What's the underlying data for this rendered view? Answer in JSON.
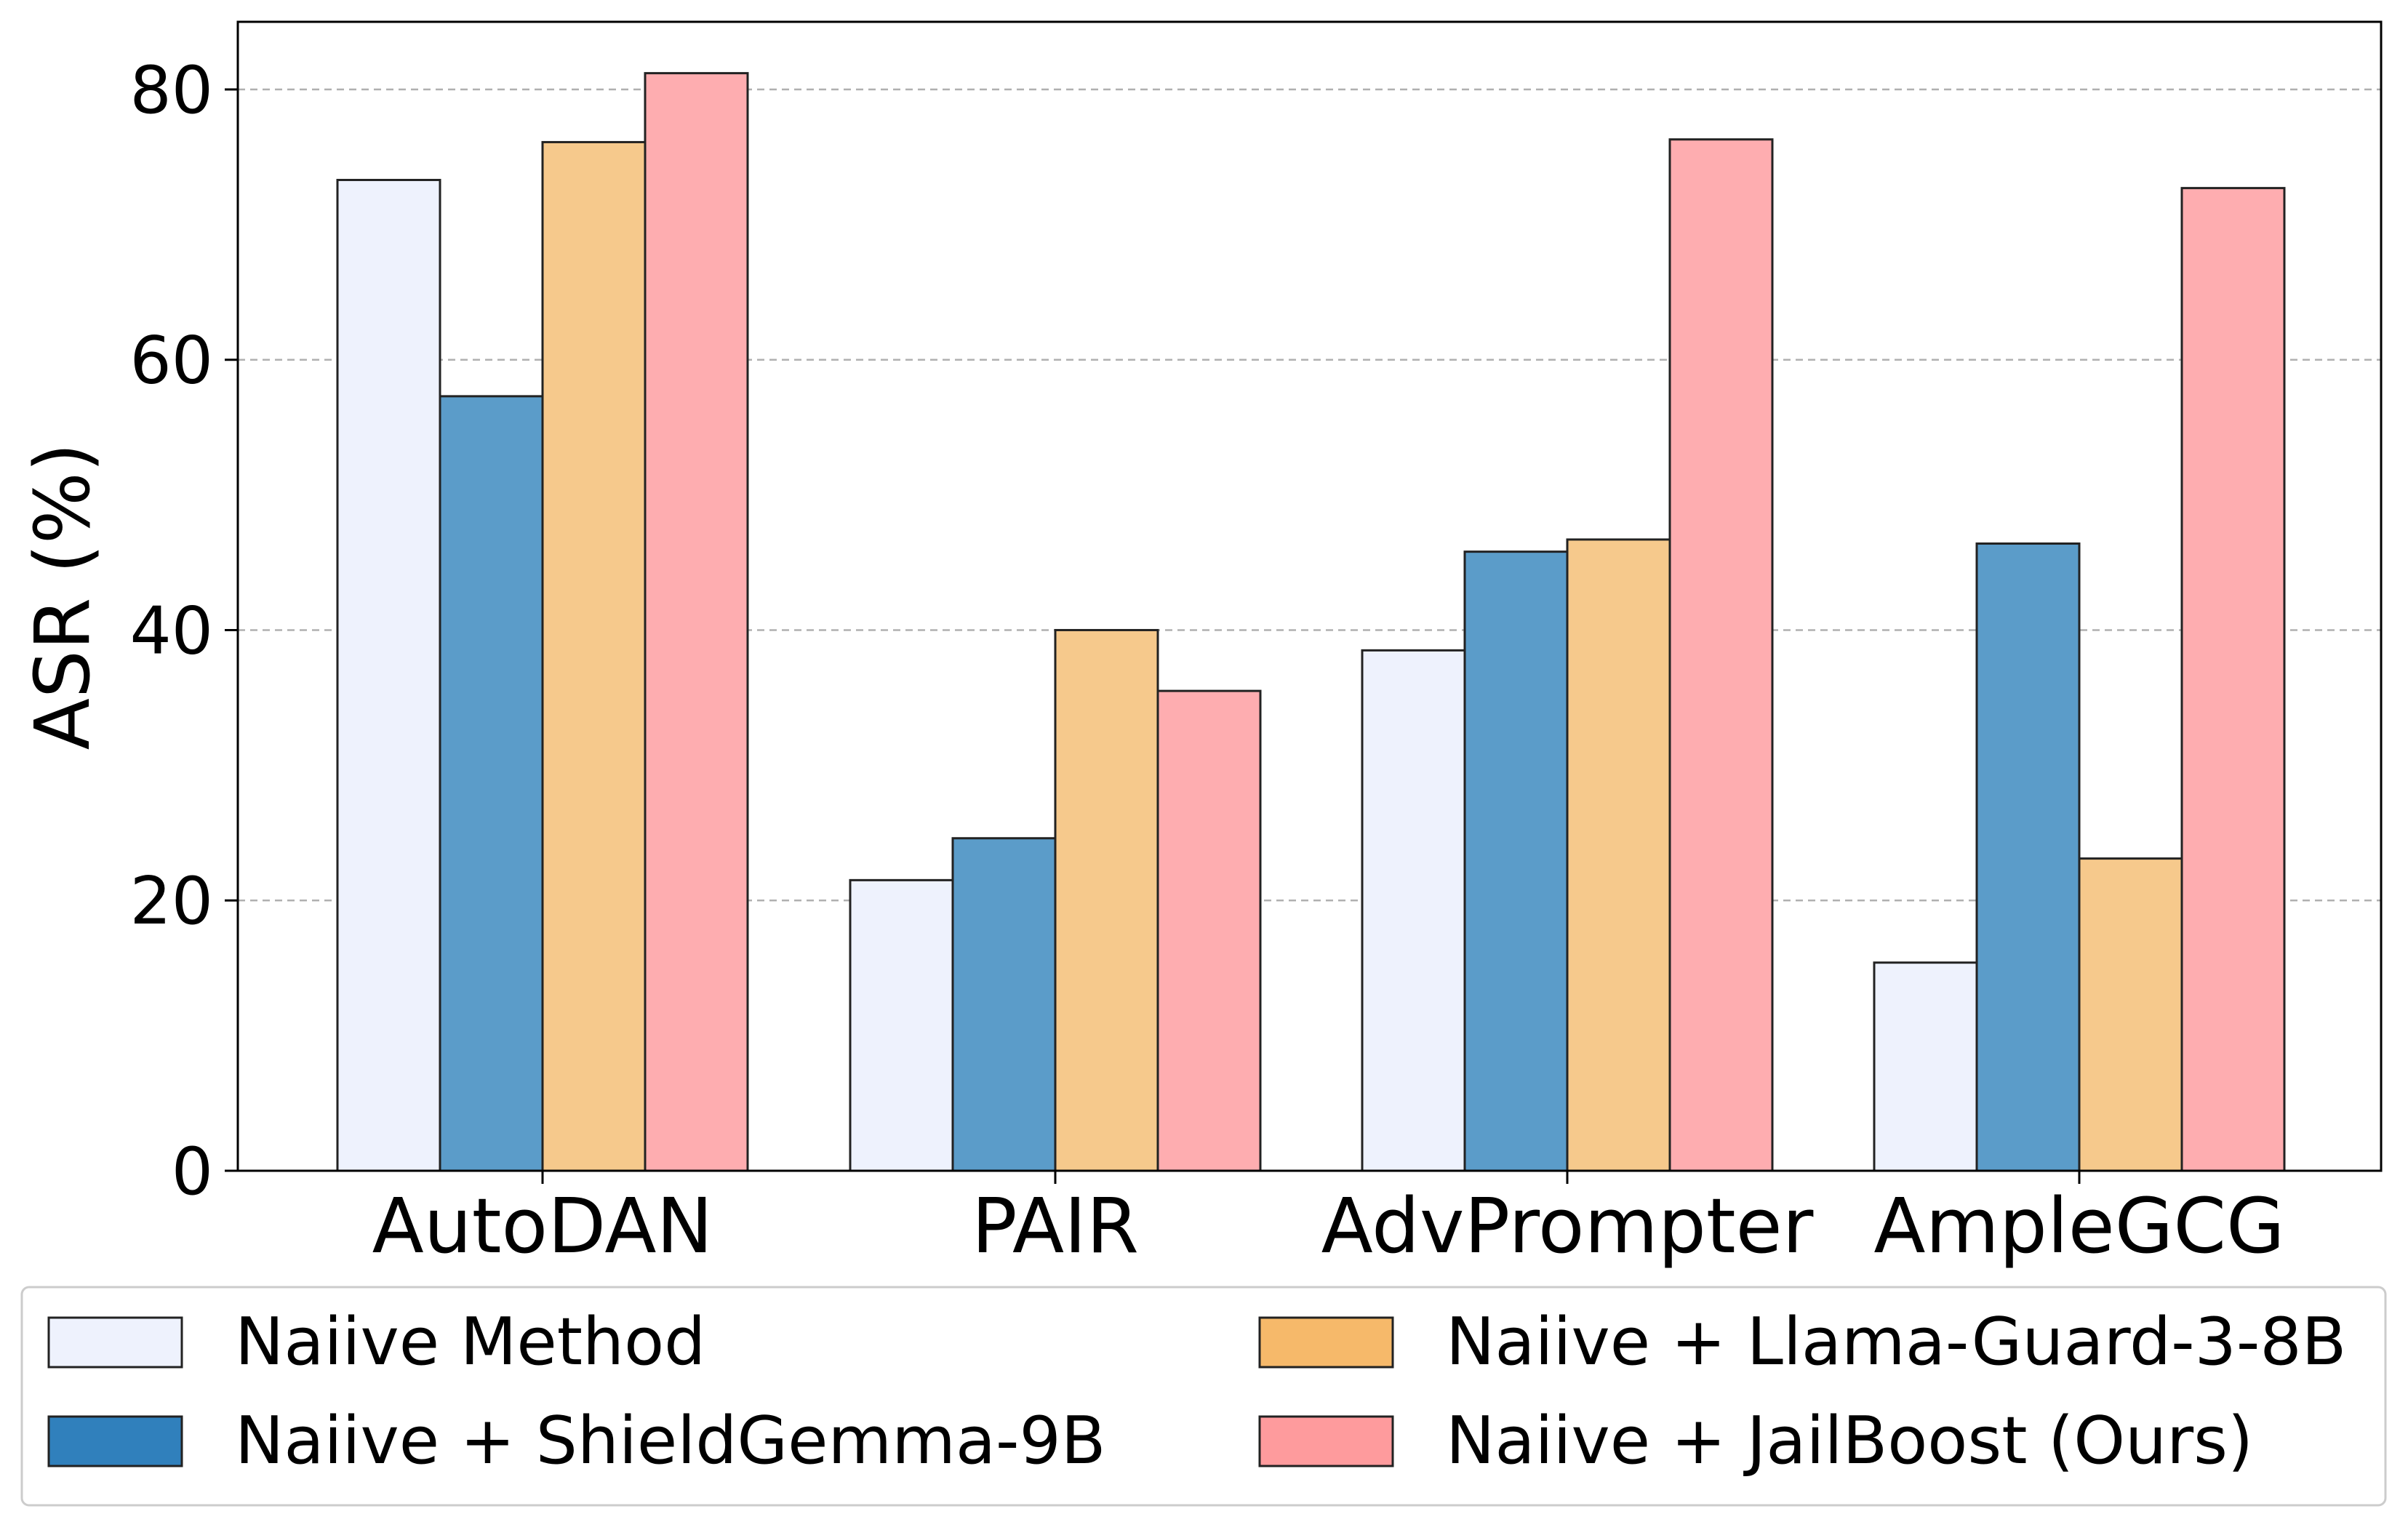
{
  "chart_data": {
    "type": "bar",
    "title": "",
    "xlabel": "",
    "ylabel": "ASR (%)",
    "ylim": [
      0,
      85
    ],
    "yticks": [
      0,
      20,
      40,
      60,
      80
    ],
    "grid": "y-dashed",
    "legend_placement": "bottom",
    "categories": [
      "AutoDAN",
      "PAIR",
      "AdvPrompter",
      "AmpleGCG"
    ],
    "series": [
      {
        "name": "Naiive Method",
        "color": "#eef2fd",
        "values": [
          73.3,
          21.5,
          38.5,
          15.4
        ]
      },
      {
        "name": "Naiive + ShieldGemma-9B",
        "color": "#5b9cc9",
        "legend_color": "#3080bc",
        "values": [
          57.3,
          24.6,
          45.8,
          46.4
        ]
      },
      {
        "name": "Naiive + Llama-Guard-3-8B",
        "color": "#f6c98c",
        "legend_color": "#f6b96a",
        "values": [
          76.1,
          40.0,
          46.7,
          23.1
        ]
      },
      {
        "name": "Naiive + JailBoost (Ours)",
        "color": "#feadb0",
        "legend_color": "#fe9b9d",
        "values": [
          81.2,
          35.5,
          76.3,
          72.7
        ]
      }
    ]
  }
}
